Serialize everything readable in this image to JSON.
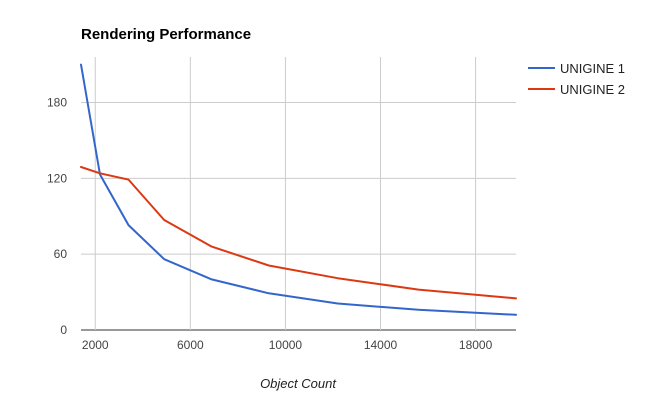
{
  "chart_data": {
    "type": "line",
    "title": "Rendering Performance",
    "xlabel": "Object Count",
    "ylabel": "",
    "xlim": [
      1400,
      19700
    ],
    "ylim": [
      0,
      216
    ],
    "x_ticks": [
      2000,
      6000,
      10000,
      14000,
      18000
    ],
    "y_ticks": [
      0,
      60,
      120,
      180
    ],
    "grid": true,
    "legend_position": "right",
    "series": [
      {
        "name": "UNIGINE 1",
        "color": "#3366cc",
        "x": [
          1400,
          2200,
          3400,
          4900,
          6900,
          9300,
          12200,
          15600,
          19700
        ],
        "y": [
          210,
          123,
          83,
          56,
          40,
          29,
          21,
          16,
          12
        ]
      },
      {
        "name": "UNIGINE 2",
        "color": "#dc3912",
        "x": [
          1400,
          2200,
          3400,
          4900,
          6900,
          9300,
          12200,
          15600,
          19700
        ],
        "y": [
          129,
          124,
          119,
          87,
          66,
          51,
          41,
          32,
          25
        ]
      }
    ]
  }
}
